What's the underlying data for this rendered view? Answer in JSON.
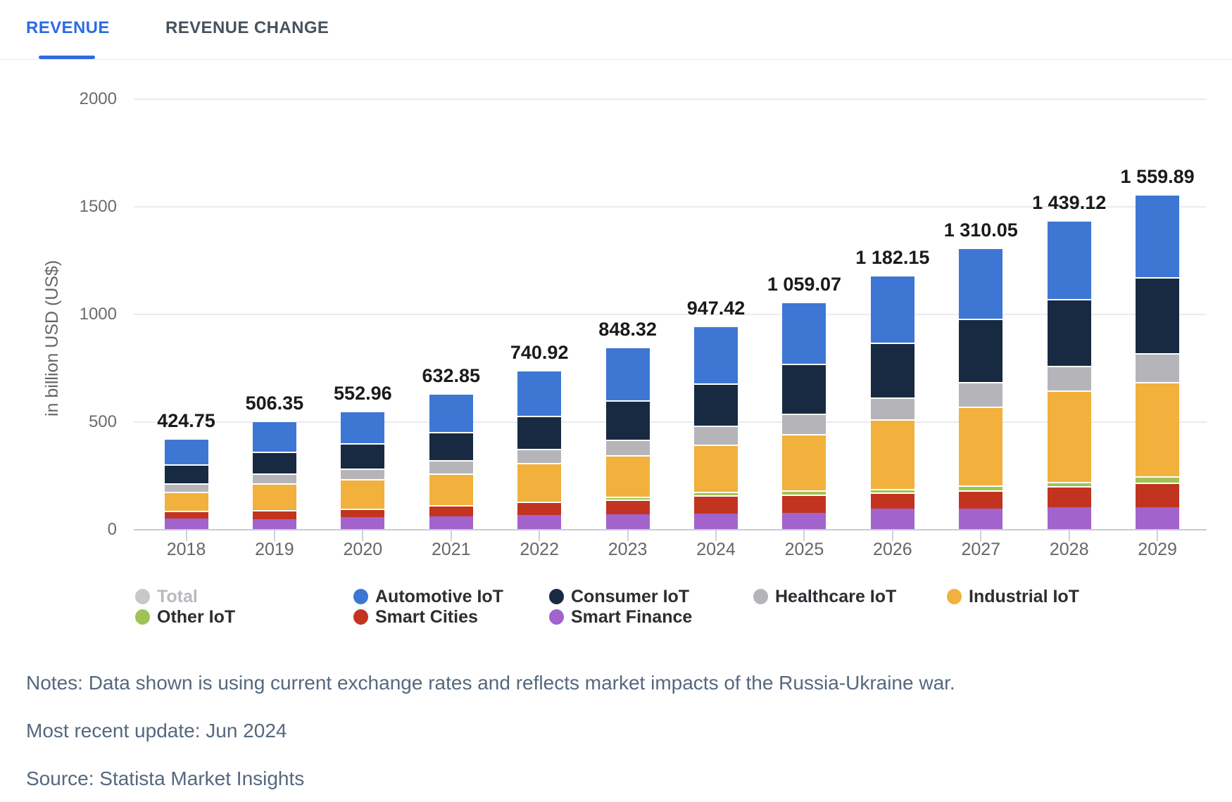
{
  "tabs": {
    "revenue_label": "REVENUE",
    "revenue_change_label": "REVENUE CHANGE",
    "active_tab": "REVENUE"
  },
  "colors": {
    "tab_active": "#2e6be2",
    "automotive_iot": "#3e76d4",
    "consumer_iot": "#182a42",
    "healthcare_iot": "#b5b5b9",
    "industrial_iot": "#f2b03c",
    "other_iot": "#9fc355",
    "smart_cities": "#c23420",
    "smart_finance": "#a263cd",
    "total_disabled": "#c8c8cc"
  },
  "chart_data": {
    "type": "bar",
    "stacked": true,
    "ylabel": "in billion USD (US$)",
    "ylim": [
      0,
      2000
    ],
    "grid": true,
    "legend_position": "bottom",
    "ytick_values": [
      0,
      500,
      1000,
      1500,
      2000
    ],
    "ytick_labels": [
      "0",
      "500",
      "1000",
      "1500",
      "2000"
    ],
    "categories": [
      "2018",
      "2019",
      "2020",
      "2021",
      "2022",
      "2023",
      "2024",
      "2025",
      "2026",
      "2027",
      "2028",
      "2029"
    ],
    "totals": [
      424.75,
      506.35,
      552.96,
      632.85,
      740.92,
      848.32,
      947.42,
      1059.07,
      1182.15,
      1310.05,
      1439.12,
      1559.89
    ],
    "total_labels": [
      "424.75",
      "506.35",
      "552.96",
      "632.85",
      "740.92",
      "848.32",
      "947.42",
      "1 059.07",
      "1 182.15",
      "1 310.05",
      "1 439.12",
      "1 559.89"
    ],
    "stack_order_note": "series listed bottom to top",
    "series": [
      {
        "name": "Smart Finance",
        "color": "#a263cd",
        "values": [
          52,
          49,
          58,
          61,
          70,
          73,
          75,
          79,
          97,
          97,
          106,
          106
        ]
      },
      {
        "name": "Smart Cities",
        "color": "#c23420",
        "values": [
          36,
          44,
          39,
          52,
          60,
          68,
          85,
          86,
          76,
          87,
          98,
          113
        ]
      },
      {
        "name": "Other IoT",
        "color": "#9fc355",
        "values": [
          1,
          1,
          1,
          2,
          3,
          12,
          16,
          18,
          16,
          22,
          19,
          28
        ]
      },
      {
        "name": "Industrial IoT",
        "color": "#f2b03c",
        "values": [
          88,
          123,
          137,
          147,
          178,
          193,
          218,
          262,
          325,
          365,
          425,
          438
        ]
      },
      {
        "name": "Healthcare IoT",
        "color": "#b5b5b9",
        "values": [
          38,
          44,
          49,
          63,
          65,
          71,
          90,
          95,
          100,
          116,
          114,
          136
        ]
      },
      {
        "name": "Consumer IoT",
        "color": "#182a42",
        "values": [
          88,
          103,
          118,
          128,
          155,
          185,
          196,
          232,
          256,
          292,
          310,
          351
        ]
      },
      {
        "name": "Automotive IoT",
        "color": "#3e76d4",
        "values": [
          121.75,
          142.35,
          150.96,
          179.85,
          209.92,
          246.32,
          267.42,
          287.07,
          312.15,
          331.05,
          367.12,
          387.89
        ]
      }
    ],
    "legend": [
      {
        "label": "Total",
        "color": "#c8c8cc",
        "dim": true
      },
      {
        "label": "Automotive IoT",
        "color": "#3e76d4",
        "dim": false
      },
      {
        "label": "Consumer IoT",
        "color": "#182a42",
        "dim": false
      },
      {
        "label": "Healthcare IoT",
        "color": "#b5b5b9",
        "dim": false
      },
      {
        "label": "Industrial IoT",
        "color": "#f2b03c",
        "dim": false
      },
      {
        "label": "Other IoT",
        "color": "#9fc355",
        "dim": false
      },
      {
        "label": "Smart Cities",
        "color": "#c23420",
        "dim": false
      },
      {
        "label": "Smart Finance",
        "color": "#a263cd",
        "dim": false
      }
    ]
  },
  "notes": {
    "notes_line": "Notes: Data shown is using current exchange rates and reflects market impacts of the Russia-Ukraine war.",
    "update_line": "Most recent update: Jun 2024",
    "source_line": "Source: Statista Market Insights"
  }
}
